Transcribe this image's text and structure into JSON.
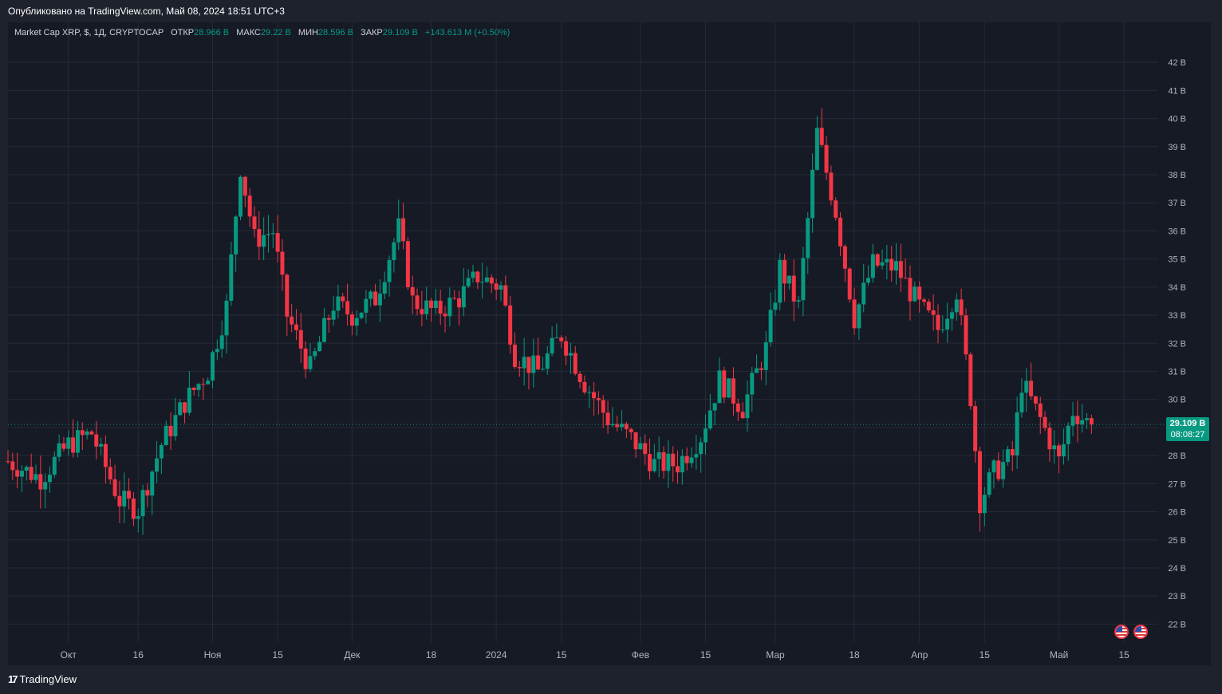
{
  "header": {
    "published": "Опубликовано на TradingView.com, Май 08, 2024 18:51 UTC+3"
  },
  "legend": {
    "symbol": "Market Cap XRP, $, 1Д, CRYPTOCAP",
    "open_label": "ОТКР",
    "open_value": "28.966 B",
    "high_label": "МАКС",
    "high_value": "29.22 B",
    "low_label": "МИН",
    "low_value": "28.596 B",
    "close_label": "ЗАКР",
    "close_value": "29.109 B",
    "change": "+143.613 M (+0.50%)"
  },
  "last_price": {
    "value": "29.109 B",
    "timer": "08:08:27"
  },
  "brand": {
    "name": "TradingView"
  },
  "colors": {
    "up": "#089981",
    "down": "#f23645",
    "grid": "#262a36",
    "background": "#161a25",
    "axis_text": "#b2b5be"
  },
  "chart_data": {
    "type": "candlestick",
    "title": "Market Cap XRP, $, 1Д, CRYPTOCAP",
    "y_unit": "B",
    "ylim": [
      21.5,
      42.8
    ],
    "y_ticks": [
      22,
      23,
      24,
      25,
      26,
      27,
      28,
      29,
      30,
      31,
      32,
      33,
      34,
      35,
      36,
      37,
      38,
      39,
      40,
      41,
      42
    ],
    "y_tick_labels": [
      "22 B",
      "23 B",
      "24 B",
      "25 B",
      "26 B",
      "27 B",
      "28 B",
      "29 B",
      "30 B",
      "31 B",
      "32 B",
      "33 B",
      "34 B",
      "35 B",
      "36 B",
      "37 B",
      "38 B",
      "39 B",
      "40 B",
      "41 B",
      "42 B"
    ],
    "x_start": "2023-09-18",
    "x_end": "2024-05-22",
    "x_ticks": [
      {
        "date": "2023-10-01",
        "label": "Окт"
      },
      {
        "date": "2023-10-16",
        "label": "16"
      },
      {
        "date": "2023-11-01",
        "label": "Ноя"
      },
      {
        "date": "2023-11-15",
        "label": "15"
      },
      {
        "date": "2023-12-01",
        "label": "Дек"
      },
      {
        "date": "2023-12-18",
        "label": "18"
      },
      {
        "date": "2024-01-01",
        "label": "2024"
      },
      {
        "date": "2024-01-15",
        "label": "15"
      },
      {
        "date": "2024-02-01",
        "label": "Фев"
      },
      {
        "date": "2024-02-15",
        "label": "15"
      },
      {
        "date": "2024-03-01",
        "label": "Мар"
      },
      {
        "date": "2024-03-18",
        "label": "18"
      },
      {
        "date": "2024-04-01",
        "label": "Апр"
      },
      {
        "date": "2024-04-15",
        "label": "15"
      },
      {
        "date": "2024-05-01",
        "label": "Май"
      },
      {
        "date": "2024-05-15",
        "label": "15"
      }
    ],
    "last_close": 29.109,
    "grid": true,
    "closes": [
      {
        "date": "2023-09-18",
        "close": 27.8
      },
      {
        "date": "2023-09-25",
        "close": 27.2
      },
      {
        "date": "2023-10-01",
        "close": 28.4
      },
      {
        "date": "2023-10-06",
        "close": 28.8
      },
      {
        "date": "2023-10-12",
        "close": 26.4
      },
      {
        "date": "2023-10-16",
        "close": 26.1
      },
      {
        "date": "2023-10-21",
        "close": 28.4
      },
      {
        "date": "2023-10-26",
        "close": 29.9
      },
      {
        "date": "2023-10-31",
        "close": 31.0
      },
      {
        "date": "2023-11-04",
        "close": 33.3
      },
      {
        "date": "2023-11-07",
        "close": 38.3
      },
      {
        "date": "2023-11-10",
        "close": 35.7
      },
      {
        "date": "2023-11-14",
        "close": 36.0
      },
      {
        "date": "2023-11-17",
        "close": 33.0
      },
      {
        "date": "2023-11-22",
        "close": 31.1
      },
      {
        "date": "2023-11-27",
        "close": 33.4
      },
      {
        "date": "2023-12-01",
        "close": 33.0
      },
      {
        "date": "2023-12-06",
        "close": 33.6
      },
      {
        "date": "2023-12-11",
        "close": 36.1
      },
      {
        "date": "2023-12-14",
        "close": 33.5
      },
      {
        "date": "2023-12-19",
        "close": 33.1
      },
      {
        "date": "2023-12-24",
        "close": 33.6
      },
      {
        "date": "2023-12-28",
        "close": 34.4
      },
      {
        "date": "2024-01-02",
        "close": 34.0
      },
      {
        "date": "2024-01-05",
        "close": 31.6
      },
      {
        "date": "2024-01-10",
        "close": 31.0
      },
      {
        "date": "2024-01-15",
        "close": 32.3
      },
      {
        "date": "2024-01-20",
        "close": 30.6
      },
      {
        "date": "2024-01-25",
        "close": 29.3
      },
      {
        "date": "2024-01-30",
        "close": 28.6
      },
      {
        "date": "2024-02-04",
        "close": 27.7
      },
      {
        "date": "2024-02-09",
        "close": 27.7
      },
      {
        "date": "2024-02-14",
        "close": 28.7
      },
      {
        "date": "2024-02-18",
        "close": 30.7
      },
      {
        "date": "2024-02-23",
        "close": 29.7
      },
      {
        "date": "2024-02-28",
        "close": 31.8
      },
      {
        "date": "2024-03-02",
        "close": 34.7
      },
      {
        "date": "2024-03-06",
        "close": 33.3
      },
      {
        "date": "2024-03-10",
        "close": 39.5
      },
      {
        "date": "2024-03-14",
        "close": 36.7
      },
      {
        "date": "2024-03-18",
        "close": 32.9
      },
      {
        "date": "2024-03-22",
        "close": 34.8
      },
      {
        "date": "2024-03-27",
        "close": 34.7
      },
      {
        "date": "2024-04-01",
        "close": 33.3
      },
      {
        "date": "2024-04-05",
        "close": 32.5
      },
      {
        "date": "2024-04-09",
        "close": 33.9
      },
      {
        "date": "2024-04-12",
        "close": 30.1
      },
      {
        "date": "2024-04-14",
        "close": 26.4
      },
      {
        "date": "2024-04-17",
        "close": 27.4
      },
      {
        "date": "2024-04-21",
        "close": 28.0
      },
      {
        "date": "2024-04-23",
        "close": 30.6
      },
      {
        "date": "2024-04-27",
        "close": 29.3
      },
      {
        "date": "2024-05-01",
        "close": 27.8
      },
      {
        "date": "2024-05-04",
        "close": 29.6
      },
      {
        "date": "2024-05-08",
        "close": 29.1
      }
    ]
  }
}
